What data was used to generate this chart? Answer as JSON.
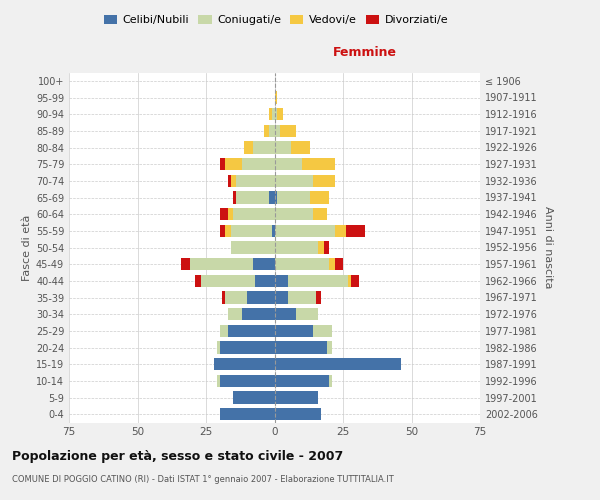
{
  "age_groups": [
    "0-4",
    "5-9",
    "10-14",
    "15-19",
    "20-24",
    "25-29",
    "30-34",
    "35-39",
    "40-44",
    "45-49",
    "50-54",
    "55-59",
    "60-64",
    "65-69",
    "70-74",
    "75-79",
    "80-84",
    "85-89",
    "90-94",
    "95-99",
    "100+"
  ],
  "birth_years": [
    "2002-2006",
    "1997-2001",
    "1992-1996",
    "1987-1991",
    "1982-1986",
    "1977-1981",
    "1972-1976",
    "1967-1971",
    "1962-1966",
    "1957-1961",
    "1952-1956",
    "1947-1951",
    "1942-1946",
    "1937-1941",
    "1932-1936",
    "1927-1931",
    "1922-1926",
    "1917-1921",
    "1912-1916",
    "1907-1911",
    "≤ 1906"
  ],
  "males": {
    "celibi": [
      20,
      15,
      20,
      22,
      20,
      17,
      12,
      10,
      7,
      8,
      0,
      1,
      0,
      2,
      0,
      0,
      0,
      0,
      0,
      0,
      0
    ],
    "coniugati": [
      0,
      0,
      1,
      0,
      1,
      3,
      5,
      8,
      20,
      23,
      16,
      15,
      15,
      12,
      14,
      12,
      8,
      2,
      1,
      0,
      0
    ],
    "vedovi": [
      0,
      0,
      0,
      0,
      0,
      0,
      0,
      0,
      0,
      0,
      0,
      2,
      2,
      0,
      2,
      6,
      3,
      2,
      1,
      0,
      0
    ],
    "divorziati": [
      0,
      0,
      0,
      0,
      0,
      0,
      0,
      1,
      2,
      3,
      0,
      2,
      3,
      1,
      1,
      2,
      0,
      0,
      0,
      0,
      0
    ]
  },
  "females": {
    "nubili": [
      17,
      16,
      20,
      46,
      19,
      14,
      8,
      5,
      5,
      0,
      0,
      0,
      0,
      1,
      0,
      0,
      0,
      0,
      0,
      0,
      0
    ],
    "coniugate": [
      0,
      0,
      1,
      0,
      2,
      7,
      8,
      10,
      22,
      20,
      16,
      22,
      14,
      12,
      14,
      10,
      6,
      2,
      1,
      0,
      0
    ],
    "vedove": [
      0,
      0,
      0,
      0,
      0,
      0,
      0,
      0,
      1,
      2,
      2,
      4,
      5,
      7,
      8,
      12,
      7,
      6,
      2,
      1,
      0
    ],
    "divorziate": [
      0,
      0,
      0,
      0,
      0,
      0,
      0,
      2,
      3,
      3,
      2,
      7,
      0,
      0,
      0,
      0,
      0,
      0,
      0,
      0,
      0
    ]
  },
  "colors": {
    "celibi_nubili": "#4472a8",
    "coniugati": "#c8d8a8",
    "vedovi": "#f5c842",
    "divorziati": "#cc1111"
  },
  "xlim": 75,
  "title": "Popolazione per età, sesso e stato civile - 2007",
  "subtitle": "COMUNE DI POGGIO CATINO (RI) - Dati ISTAT 1° gennaio 2007 - Elaborazione TUTTITALIA.IT",
  "ylabel_left": "Fasce di età",
  "ylabel_right": "Anni di nascita",
  "xlabel_femmine": "Femmine",
  "bg_color": "#f0f0f0",
  "plot_bg": "#ffffff",
  "grid_color": "#cccccc"
}
